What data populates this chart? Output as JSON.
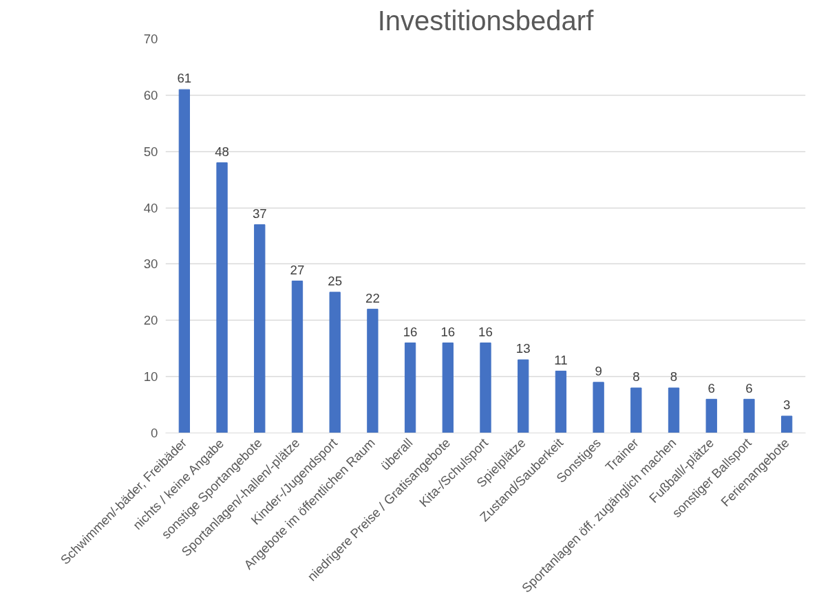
{
  "chart_data": {
    "type": "bar",
    "title": "Investitionsbedarf",
    "categories": [
      "Schwimmen/-bäder, Freibäder",
      "nichts / keine Angabe",
      "sonstige Sportangebote",
      "Sportanlagen/-hallen/-plätze",
      "Kinder-/Jugendsport",
      "Angebote im öffentlichen Raum",
      "überall",
      "niedrigere Preise / Gratisangebote",
      "Kita-/Schulsport",
      "Spielplätze",
      "Zustand/Sauberkeit",
      "Sonstiges",
      "Trainer",
      "Sportanlagen öff. zugänglich machen",
      "Fußball/-plätze",
      "sonstiger Ballsport",
      "Ferienangebote"
    ],
    "values": [
      61,
      48,
      37,
      27,
      25,
      22,
      16,
      16,
      16,
      13,
      11,
      9,
      8,
      8,
      6,
      6,
      3
    ],
    "color": "#4472c4",
    "ylim": [
      0,
      70
    ],
    "yticks": [
      0,
      10,
      20,
      30,
      40,
      50,
      60,
      70
    ],
    "grid": "y",
    "data_labels": true
  }
}
